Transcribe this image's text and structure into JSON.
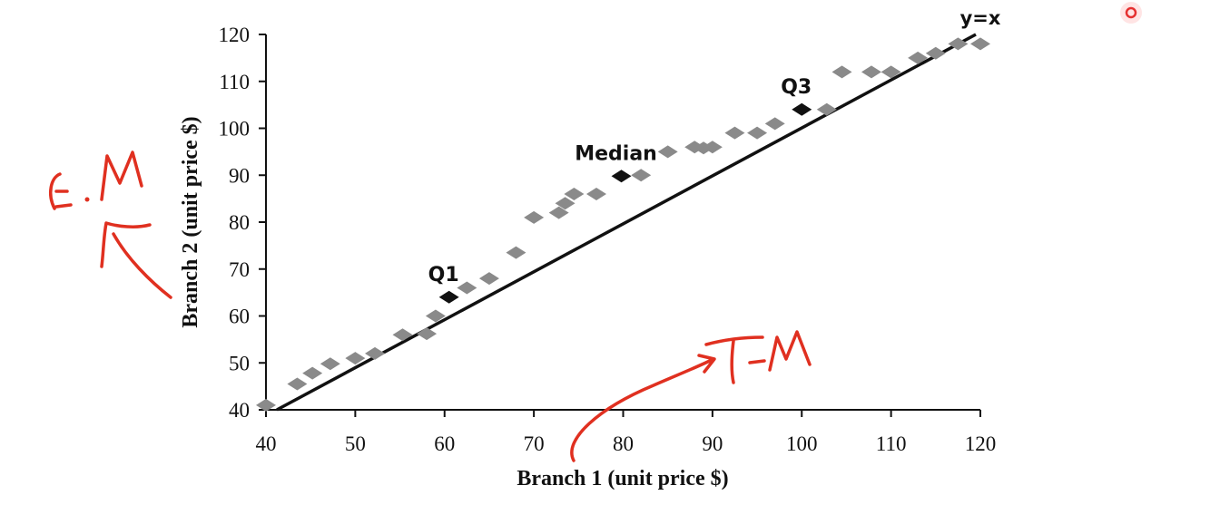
{
  "chart_data": {
    "type": "scatter",
    "xlabel": "Branch 1 (unit price $)",
    "ylabel": "Branch 2 (unit price $)",
    "xlim": [
      40,
      120
    ],
    "ylim": [
      40,
      120
    ],
    "x_ticks": [
      40,
      50,
      60,
      70,
      80,
      90,
      100,
      110,
      120
    ],
    "y_ticks": [
      40,
      50,
      60,
      70,
      80,
      90,
      100,
      110,
      120
    ],
    "grid": false,
    "legend": "none",
    "marker": "diamond",
    "point_color": "#8a8a8a",
    "highlight_color": "#111111",
    "points": [
      {
        "x": 40,
        "y": 41
      },
      {
        "x": 43.5,
        "y": 45.5
      },
      {
        "x": 45.2,
        "y": 47.8
      },
      {
        "x": 47.2,
        "y": 49.8
      },
      {
        "x": 50,
        "y": 51
      },
      {
        "x": 52.2,
        "y": 52
      },
      {
        "x": 55.3,
        "y": 56
      },
      {
        "x": 58,
        "y": 56.2
      },
      {
        "x": 59,
        "y": 60
      },
      {
        "x": 62.5,
        "y": 66
      },
      {
        "x": 65,
        "y": 68
      },
      {
        "x": 68,
        "y": 73.5
      },
      {
        "x": 70,
        "y": 81
      },
      {
        "x": 72.8,
        "y": 82
      },
      {
        "x": 73.5,
        "y": 84
      },
      {
        "x": 74.5,
        "y": 86
      },
      {
        "x": 77,
        "y": 86
      },
      {
        "x": 82,
        "y": 90
      },
      {
        "x": 85,
        "y": 95
      },
      {
        "x": 88,
        "y": 96
      },
      {
        "x": 89,
        "y": 95.8
      },
      {
        "x": 90,
        "y": 96
      },
      {
        "x": 92.5,
        "y": 99
      },
      {
        "x": 95,
        "y": 99
      },
      {
        "x": 97,
        "y": 101
      },
      {
        "x": 102.8,
        "y": 104
      },
      {
        "x": 104.5,
        "y": 112
      },
      {
        "x": 107.8,
        "y": 112
      },
      {
        "x": 110,
        "y": 112
      },
      {
        "x": 113,
        "y": 115
      },
      {
        "x": 115,
        "y": 116
      },
      {
        "x": 117.5,
        "y": 118
      },
      {
        "x": 120,
        "y": 118
      }
    ],
    "highlighted_points": [
      {
        "label": "Q1",
        "x": 60.5,
        "y": 64
      },
      {
        "label": "Median",
        "x": 79.8,
        "y": 89.8
      },
      {
        "label": "Q3",
        "x": 100,
        "y": 104
      }
    ],
    "reference_line": {
      "label": "y=x",
      "from": [
        40,
        40
      ],
      "to": [
        120,
        120
      ],
      "color": "#111111"
    },
    "handwritten_annotations": [
      {
        "text": "E.M",
        "color": "#e03020"
      },
      {
        "text": "T.M",
        "color": "#e03020"
      }
    ]
  }
}
